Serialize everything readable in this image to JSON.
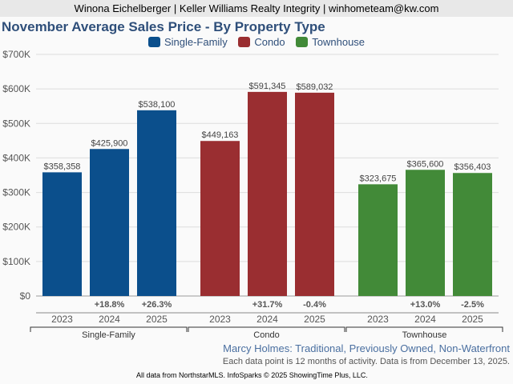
{
  "header": {
    "agent_line": "Winona Eichelberger | Keller Williams Realty Integrity | winhometeam@kw.com"
  },
  "chart_data": {
    "type": "bar",
    "title": "November Average Sales Price - By Property Type",
    "xlabel": "",
    "ylabel": "",
    "ylim": [
      0,
      700000
    ],
    "yticks": [
      0,
      100000,
      200000,
      300000,
      400000,
      500000,
      600000,
      700000
    ],
    "ytick_labels": [
      "$0",
      "$100K",
      "$200K",
      "$300K",
      "$400K",
      "$500K",
      "$600K",
      "$700K"
    ],
    "grid": true,
    "legend_position": "top-center",
    "categories": [
      "2023",
      "2024",
      "2025"
    ],
    "series": [
      {
        "name": "Single-Family",
        "color": "#0b4f8c",
        "values": [
          358358,
          425900,
          538100
        ],
        "value_labels": [
          "$358,358",
          "$425,900",
          "$538,100"
        ],
        "change_labels": [
          "",
          "+18.8%",
          "+26.3%"
        ]
      },
      {
        "name": "Condo",
        "color": "#9a2e31",
        "values": [
          449163,
          591345,
          589032
        ],
        "value_labels": [
          "$449,163",
          "$591,345",
          "$589,032"
        ],
        "change_labels": [
          "",
          "+31.7%",
          "-0.4%"
        ]
      },
      {
        "name": "Townhouse",
        "color": "#428a38",
        "values": [
          323675,
          365600,
          356403
        ],
        "value_labels": [
          "$323,675",
          "$365,600",
          "$356,403"
        ],
        "change_labels": [
          "",
          "+13.0%",
          "-2.5%"
        ]
      }
    ]
  },
  "subtitle": "Marcy Holmes: Traditional, Previously Owned, Non-Waterfront",
  "note": "Each data point is 12 months of activity. Data is from December 13, 2025.",
  "footer": "All data from NorthstarMLS. InfoSparks © 2025 ShowingTime Plus, LLC."
}
